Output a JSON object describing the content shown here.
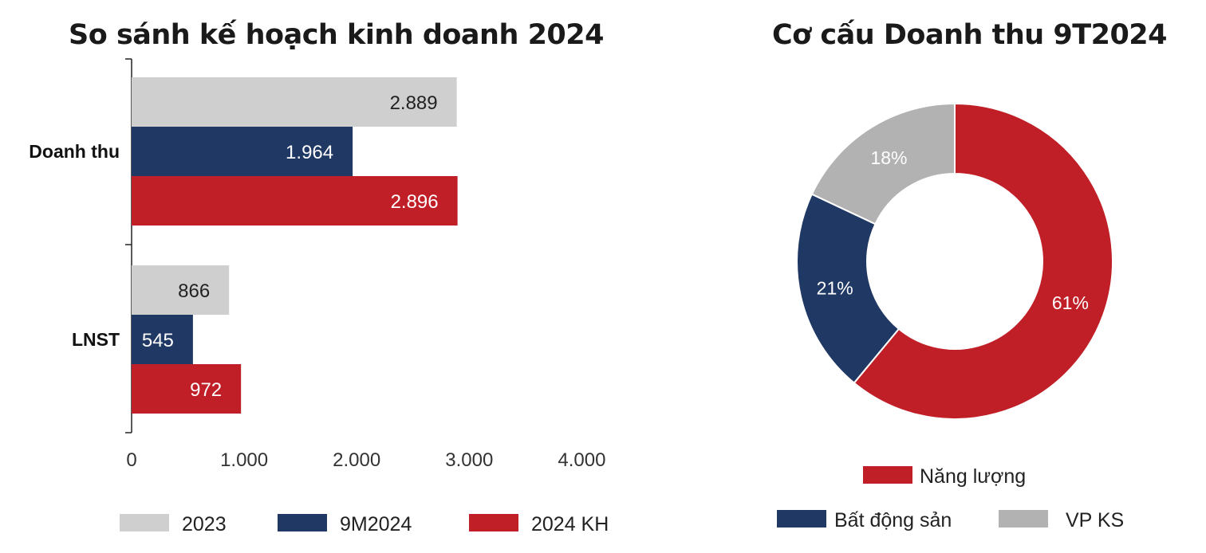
{
  "chart_data": [
    {
      "type": "bar",
      "orientation": "horizontal",
      "title": "So sánh kế hoạch kinh doanh 2024",
      "categories": [
        "Doanh thu",
        "LNST"
      ],
      "series": [
        {
          "name": "2023",
          "color": "#d0cfcf",
          "label_color": "#222222",
          "values": [
            2889,
            866
          ],
          "labels": [
            "2.889",
            "866"
          ]
        },
        {
          "name": "9M2024",
          "color": "#203864",
          "label_color": "#ffffff",
          "values": [
            1964,
            545
          ],
          "labels": [
            "1.964",
            "545"
          ]
        },
        {
          "name": "2024 KH",
          "color": "#c11f27",
          "label_color": "#ffffff",
          "values": [
            2896,
            972
          ],
          "labels": [
            "2.896",
            "972"
          ]
        }
      ],
      "xlim": [
        0,
        4000
      ],
      "xticks": [
        0,
        1000,
        2000,
        3000,
        4000
      ],
      "xtick_labels": [
        "0",
        "1.000",
        "2.000",
        "3.000",
        "4.000"
      ],
      "legend_position": "bottom",
      "grid": false
    },
    {
      "type": "pie",
      "donut": true,
      "title": "Cơ cấu Doanh thu 9T2024",
      "slices": [
        {
          "name": "Năng lượng",
          "value": 61,
          "label": "61%",
          "color": "#c11f27"
        },
        {
          "name": "Bất động sản",
          "value": 21,
          "label": "21%",
          "color": "#203864"
        },
        {
          "name": "VP KS",
          "value": 18,
          "label": "18%",
          "color": "#b2b2b2"
        }
      ],
      "start_angle": "12 o'clock",
      "direction": "clockwise",
      "legend_position": "bottom"
    }
  ]
}
